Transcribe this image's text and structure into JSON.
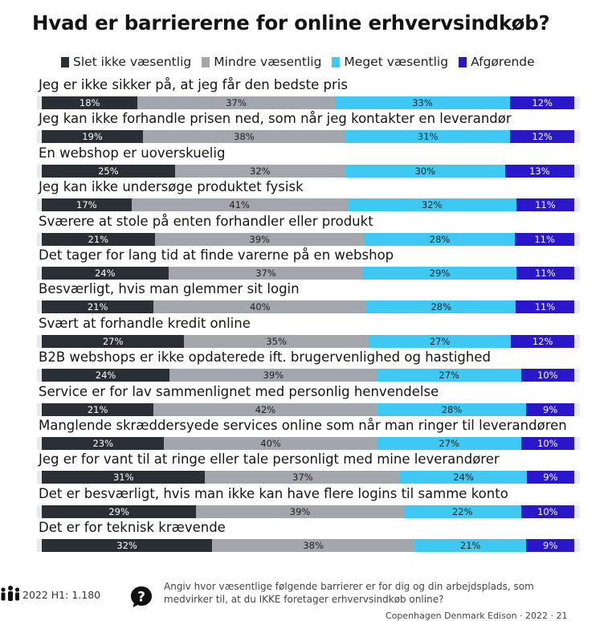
{
  "chart_data": {
    "type": "bar",
    "orientation": "horizontal",
    "stacked": "100%",
    "title": "Hvad er barriererne for online erhvervsindkøb?",
    "legend_position": "top",
    "series": [
      {
        "name": "Slet ikke væsentlig",
        "color": "#2a2e35",
        "text_color": "#ffffff",
        "values": [
          18,
          19,
          25,
          17,
          21,
          24,
          21,
          27,
          24,
          21,
          23,
          31,
          29,
          32
        ]
      },
      {
        "name": "Mindre væsentlig",
        "color": "#a3a7ad",
        "text_color": "#222222",
        "values": [
          37,
          38,
          32,
          41,
          39,
          37,
          40,
          35,
          39,
          42,
          40,
          37,
          39,
          38
        ]
      },
      {
        "name": "Meget væsentlig",
        "color": "#3fc8f1",
        "text_color": "#222222",
        "values": [
          33,
          31,
          30,
          32,
          28,
          29,
          28,
          27,
          27,
          28,
          27,
          24,
          22,
          21
        ]
      },
      {
        "name": "Afgørende",
        "color": "#2a17c9",
        "text_color": "#ffffff",
        "values": [
          12,
          12,
          13,
          11,
          11,
          11,
          11,
          12,
          10,
          9,
          10,
          9,
          10,
          9
        ]
      }
    ],
    "categories": [
      "Jeg er ikke sikker på, at jeg får den bedste pris",
      "Jeg kan ikke forhandle prisen ned, som når jeg kontakter en leverandør",
      "En webshop er uoverskuelig",
      "Jeg kan ikke undersøge produktet fysisk",
      "Sværere at stole på enten forhandler eller produkt",
      "Det tager for lang tid at finde varerne på en webshop",
      "Besværligt, hvis man glemmer sit login",
      "Svært at forhandle kredit online",
      "B2B webshops er ikke opdaterede ift. brugervenlighed og hastighed",
      "Service er for lav sammenlignet med personlig henvendelse",
      "Manglende skræddersyede services online som når man ringer til leverandøren",
      "Jeg er for vant til at ringe eller tale personligt med mine leverandører",
      "Det er besværligt, hvis man ikke kan have flere logins til samme konto",
      "Det er for teknisk krævende"
    ],
    "value_suffix": "%"
  },
  "footer": {
    "sample": "2022 H1: 1.180",
    "question": "Angiv hvor væsentlige følgende barrierer er for dig og din arbejdsplads, som medvirker til, at du IKKE foretager erhvervsindkøb online?",
    "source_cut": "Copenhagen Denmark Edison · 2022 · 21"
  }
}
